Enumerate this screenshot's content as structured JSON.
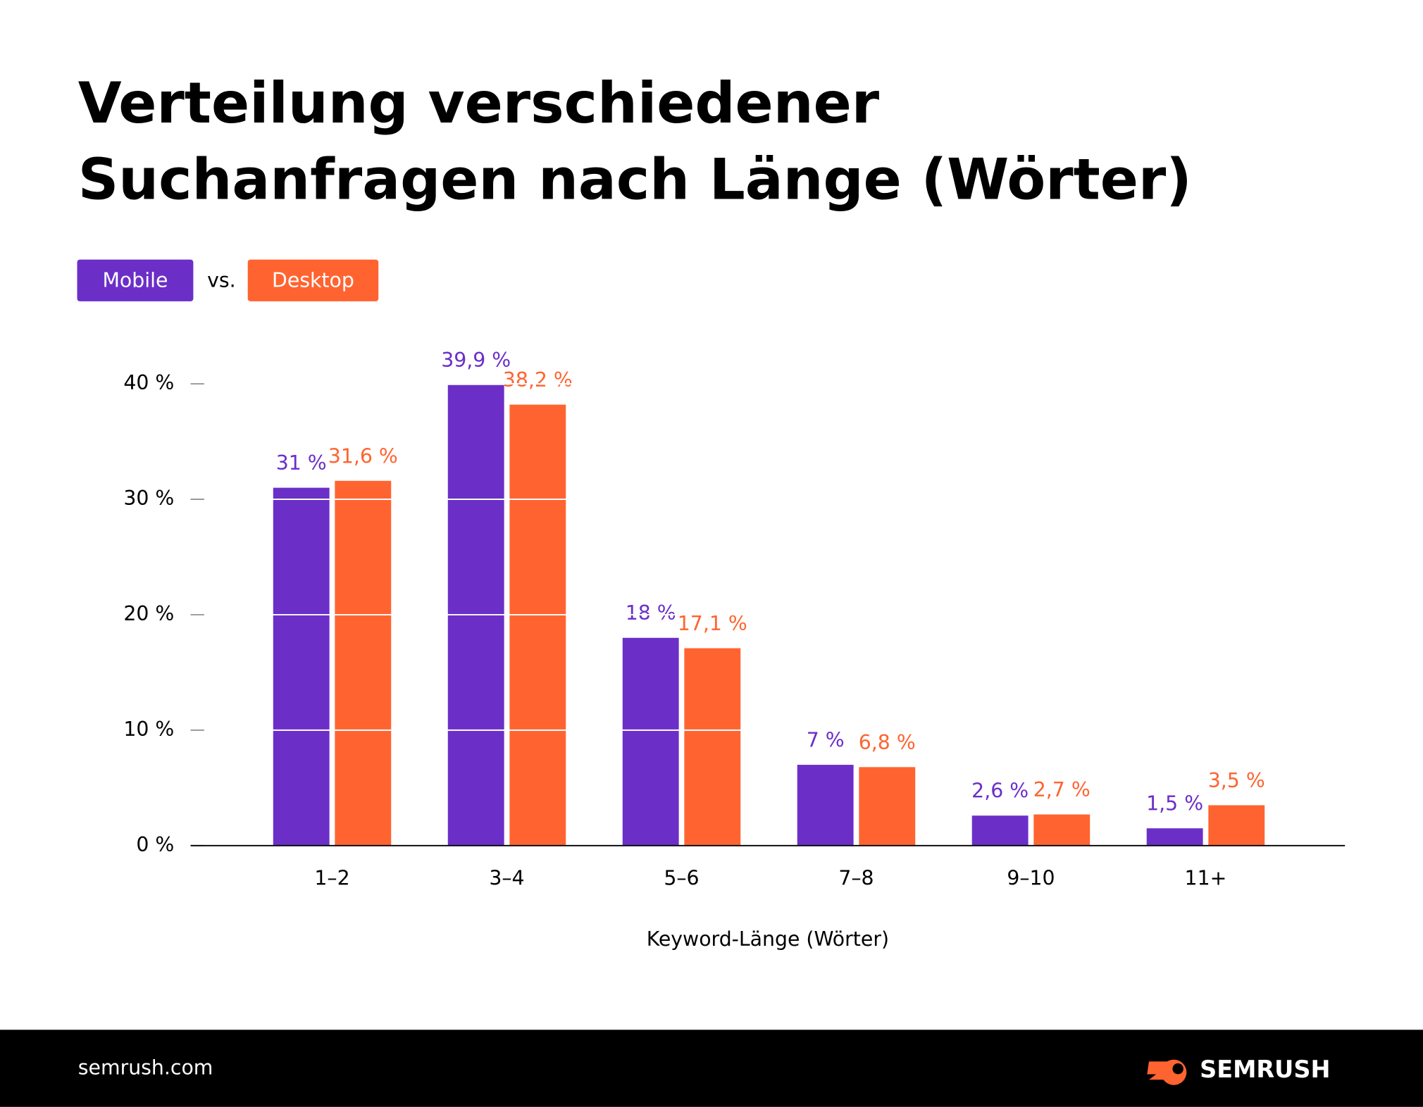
{
  "chart_data": {
    "type": "bar",
    "title": [
      "Verteilung verschiedener",
      "Suchanfragen nach Länge (Wörter)"
    ],
    "legend_separator": "vs.",
    "x_label": "Keyword-Länge (Wörter)",
    "categories": [
      "1–2",
      "3–4",
      "5–6",
      "7–8",
      "9–10",
      "11+"
    ],
    "series": [
      {
        "name": "Mobile",
        "color": "#6b2fc8",
        "values": [
          31,
          39.9,
          18,
          7,
          2.6,
          1.5
        ],
        "value_labels": [
          "31 %",
          "39,9 %",
          "18 %",
          "7 %",
          "2,6 %",
          "1,5 %"
        ]
      },
      {
        "name": "Desktop",
        "color": "#ff6430",
        "values": [
          31.6,
          38.2,
          17.1,
          6.8,
          2.7,
          3.5
        ],
        "value_labels": [
          "31,6 %",
          "38,2 %",
          "17,1 %",
          "6,8 %",
          "2,7 %",
          "3,5 %"
        ]
      }
    ],
    "ylim": [
      0,
      40
    ],
    "yticks": [
      {
        "value": 0,
        "label": "0 %"
      },
      {
        "value": 10,
        "label": "10 %"
      },
      {
        "value": 20,
        "label": "20 %"
      },
      {
        "value": 30,
        "label": "30 %"
      },
      {
        "value": 40,
        "label": "40 %"
      }
    ],
    "grid": true
  },
  "footer": {
    "source": "semrush.com",
    "brand": "SEMRUSH"
  }
}
